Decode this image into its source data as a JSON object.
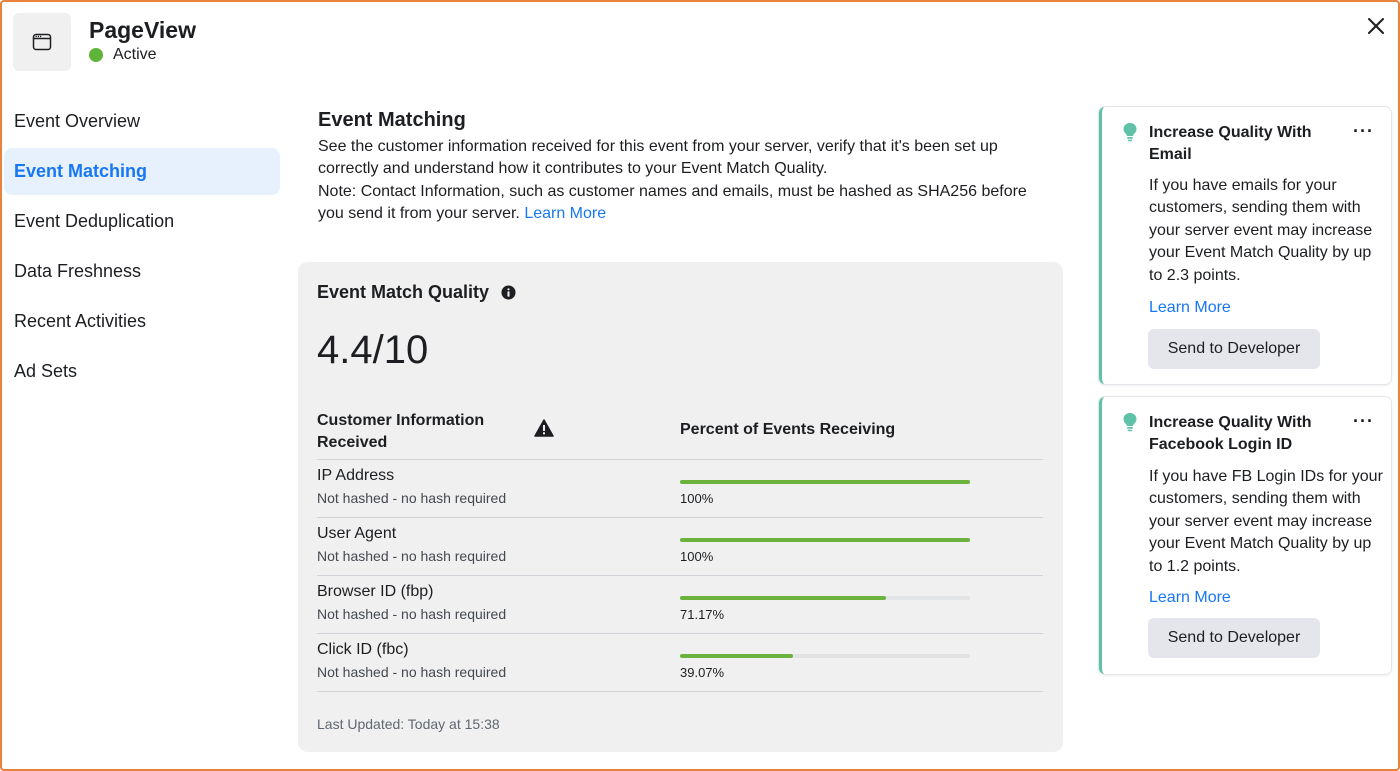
{
  "header": {
    "title": "PageView",
    "status": "Active",
    "status_color": "#5fb53a",
    "icon": "browser-window-icon",
    "close_icon": "close-icon"
  },
  "sidebar": {
    "items": [
      {
        "label": "Event Overview",
        "active": false
      },
      {
        "label": "Event Matching",
        "active": true
      },
      {
        "label": "Event Deduplication",
        "active": false
      },
      {
        "label": "Data Freshness",
        "active": false
      },
      {
        "label": "Recent Activities",
        "active": false
      },
      {
        "label": "Ad Sets",
        "active": false
      }
    ]
  },
  "main": {
    "title": "Event Matching",
    "description": "See the customer information received for this event from your server, verify that it's been set up correctly and understand how it contributes to your Event Match Quality.",
    "note": "Note: Contact Information, such as customer names and emails, must be hashed as SHA256 before you send it from your server.",
    "learn_more": "Learn More"
  },
  "emq": {
    "title": "Event Match Quality",
    "score": "4.4/10",
    "col_customer_info": "Customer Information Received",
    "col_percent": "Percent of Events Receiving",
    "rows": [
      {
        "label": "IP Address",
        "sub": "Not hashed - no hash required",
        "percent_text": "100%",
        "percent": 100
      },
      {
        "label": "User Agent",
        "sub": "Not hashed - no hash required",
        "percent_text": "100%",
        "percent": 100
      },
      {
        "label": "Browser ID (fbp)",
        "sub": "Not hashed - no hash required",
        "percent_text": "71.17%",
        "percent": 71.17
      },
      {
        "label": "Click ID (fbc)",
        "sub": "Not hashed - no hash required",
        "percent_text": "39.07%",
        "percent": 39.07
      }
    ],
    "last_updated": "Last Updated: Today at 15:38",
    "bar_color": "#6bb33c"
  },
  "tips": [
    {
      "title": "Increase Quality With Email",
      "body": "If you have emails for your customers, sending them with your server event may increase your Event Match Quality by up to 2.3 points.",
      "link": "Learn More",
      "button": "Send to Developer",
      "more": "···"
    },
    {
      "title": "Increase Quality With Facebook Login ID",
      "body": "If you have FB Login IDs for your customers, sending them with your server event may increase your Event Match Quality by up to 1.2 points.",
      "link": "Learn More",
      "button": "Send to Developer",
      "more": "···"
    }
  ],
  "colors": {
    "accent": "#1877f2",
    "frame": "#e8823d",
    "tip_border": "#5fc2a8",
    "sidebar_active_bg": "#e7f0fd"
  }
}
